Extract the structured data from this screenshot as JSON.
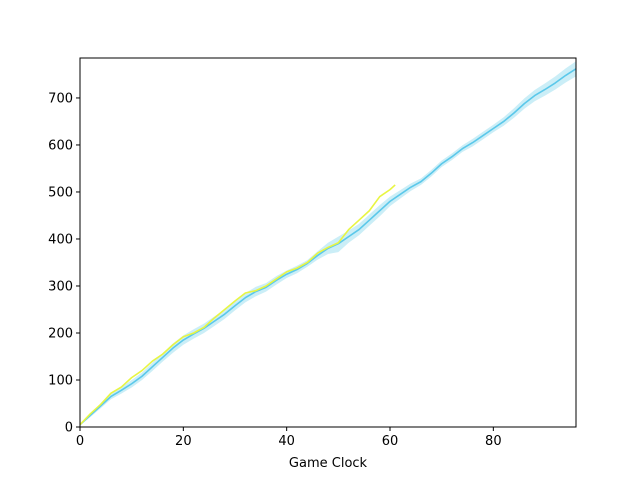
{
  "chart_data": {
    "type": "line",
    "title": "",
    "xlabel": "Game Clock",
    "ylabel": "",
    "xlim": [
      0,
      96
    ],
    "ylim": [
      0,
      785
    ],
    "xticks": [
      0,
      20,
      40,
      60,
      80
    ],
    "yticks": [
      0,
      100,
      200,
      300,
      400,
      500,
      600,
      700
    ],
    "grid": false,
    "legend": "none",
    "series": [
      {
        "color": "#5bc8ea",
        "band_color": "#a8e2f2",
        "x": [
          0,
          2,
          4,
          6,
          8,
          10,
          12,
          14,
          16,
          18,
          20,
          22,
          24,
          26,
          28,
          30,
          32,
          34,
          36,
          38,
          40,
          42,
          44,
          46,
          48,
          50,
          52,
          54,
          56,
          58,
          60,
          62,
          64,
          66,
          68,
          70,
          72,
          74,
          76,
          78,
          80,
          82,
          84,
          86,
          88,
          90,
          92,
          94,
          96
        ],
        "y": [
          5,
          25,
          45,
          65,
          78,
          92,
          108,
          128,
          148,
          168,
          185,
          198,
          210,
          225,
          240,
          258,
          275,
          288,
          297,
          312,
          325,
          335,
          348,
          365,
          380,
          390,
          405,
          420,
          440,
          460,
          480,
          495,
          510,
          522,
          540,
          560,
          575,
          592,
          605,
          620,
          635,
          650,
          668,
          688,
          705,
          718,
          732,
          748,
          762
        ],
        "lower": [
          3,
          21,
          40,
          59,
          71,
          84,
          100,
          119,
          139,
          158,
          175,
          188,
          200,
          215,
          230,
          248,
          265,
          278,
          288,
          303,
          317,
          327,
          341,
          356,
          368,
          372,
          392,
          408,
          428,
          448,
          470,
          486,
          502,
          515,
          533,
          553,
          568,
          585,
          597,
          612,
          627,
          641,
          658,
          677,
          693,
          705,
          718,
          733,
          746
        ],
        "upper": [
          7,
          29,
          50,
          71,
          85,
          100,
          116,
          137,
          157,
          178,
          195,
          208,
          220,
          235,
          250,
          268,
          285,
          298,
          306,
          321,
          333,
          343,
          355,
          374,
          392,
          405,
          418,
          432,
          452,
          472,
          490,
          504,
          518,
          529,
          547,
          567,
          582,
          599,
          613,
          628,
          643,
          659,
          678,
          699,
          717,
          731,
          746,
          763,
          778
        ]
      },
      {
        "color": "#e8f542",
        "x": [
          0,
          2,
          4,
          6,
          8,
          10,
          12,
          14,
          16,
          18,
          20,
          22,
          24,
          26,
          28,
          30,
          32,
          34,
          36,
          38,
          40,
          42,
          44,
          46,
          48,
          50,
          52,
          54,
          56,
          58,
          60,
          61
        ],
        "y": [
          5,
          28,
          48,
          72,
          85,
          105,
          120,
          140,
          155,
          175,
          192,
          200,
          212,
          232,
          250,
          268,
          285,
          290,
          300,
          315,
          330,
          338,
          350,
          370,
          382,
          392,
          420,
          440,
          460,
          490,
          505,
          515
        ]
      }
    ]
  }
}
